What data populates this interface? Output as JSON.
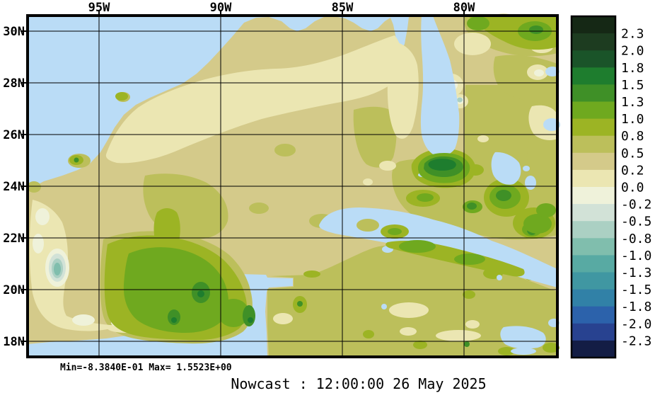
{
  "title": "Nowcast : 12:00:00  26 May 2025",
  "stats_line": "Min=-8.3840E-01  Max= 1.5523E+00",
  "chart_data": {
    "type": "heatmap",
    "subtype": "filled-contour-map",
    "title": "Nowcast : 12:00:00  26 May 2025",
    "x_tick_labels": [
      "95W",
      "90W",
      "85W",
      "80W"
    ],
    "y_tick_labels": [
      "30N",
      "28N",
      "26N",
      "24N",
      "22N",
      "20N",
      "18N"
    ],
    "grid": "on",
    "annotations": {
      "min_label": "Min=-8.3840E-01",
      "max_label": "Max= 1.5523E+00",
      "min_value": -0.8384,
      "max_value": 1.5523,
      "datetime_shown": "12:00:00  26 May 2025"
    },
    "colorbar": {
      "position": "right",
      "levels": [
        2.3,
        2.0,
        1.8,
        1.5,
        1.3,
        1.0,
        0.8,
        0.5,
        0.2,
        0.0,
        -0.2,
        -0.5,
        -0.8,
        -1.0,
        -1.3,
        -1.5,
        -1.8,
        -2.0,
        -2.3
      ],
      "labels": [
        "2.3",
        "2.0",
        "1.8",
        "1.5",
        "1.3",
        "1.0",
        "0.8",
        "0.5",
        "0.2",
        "0.0",
        "-0.2",
        "-0.5",
        "-0.8",
        "-1.0",
        "-1.3",
        "-1.5",
        "-1.8",
        "-2.0",
        "-2.3"
      ],
      "colors": [
        "#152815",
        "#1d3c20",
        "#1a5429",
        "#1e7d2e",
        "#3f9027",
        "#6fa91f",
        "#9cb424",
        "#bcbf5b",
        "#d4ca8a",
        "#ebe6b2",
        "#eff2da",
        "#d2e2d7",
        "#abd0c3",
        "#80bead",
        "#58aaa3",
        "#4097a2",
        "#3181a7",
        "#2c62ab",
        "#284290",
        "#131d45"
      ]
    },
    "map_colors": {
      "land_mask": "#badcf6",
      "frame": "#000000",
      "dominant_field_band": "#d4ca8a"
    },
    "notable_features": [
      {
        "name": "positive-core-south-of-florida",
        "approx_value_band": "1.5 to Max 1.5523"
      },
      {
        "name": "negative-core-west-coast",
        "approx_value_band": "-0.8 to Min -0.8384"
      }
    ]
  }
}
